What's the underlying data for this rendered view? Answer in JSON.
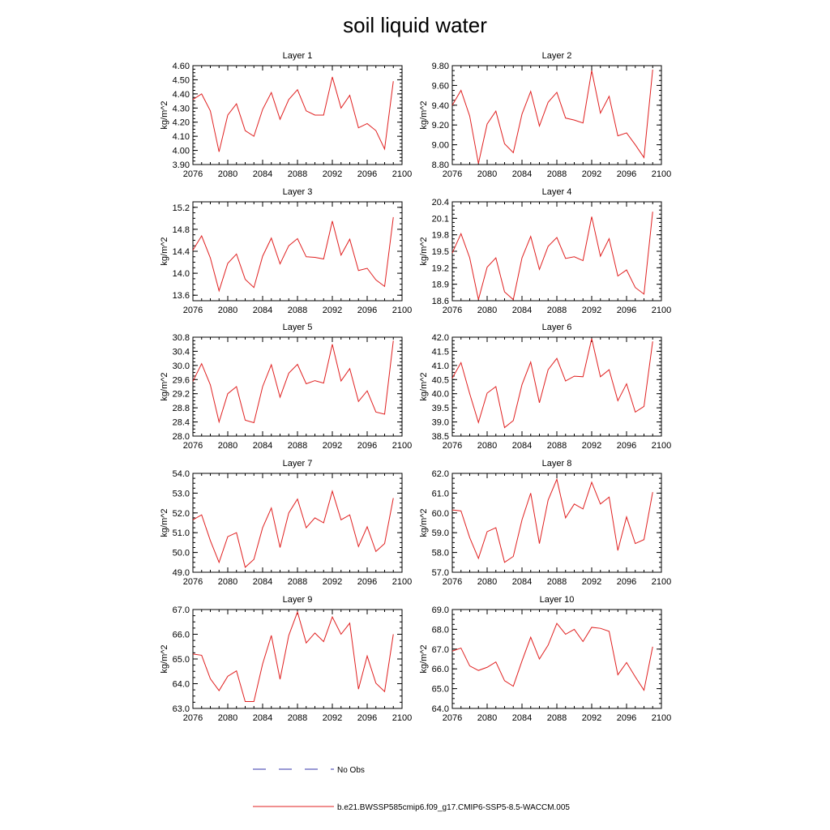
{
  "title": "soil liquid water",
  "legend": {
    "obs_label": "No Obs",
    "obs_color": "#3333aa",
    "model_label": "b.e21.BWSSP585cmip6.f09_g17.CMIP6-SSP5-8.5-WACCM.005",
    "model_color": "#e02020"
  },
  "chart_data": [
    {
      "type": "line",
      "title": "Layer 1",
      "ylabel": "kg/m^2",
      "xlim": [
        2076,
        2100
      ],
      "ylim": [
        3.9,
        4.6
      ],
      "xticks": [
        "2076",
        "2080",
        "2084",
        "2088",
        "2092",
        "2096",
        "2100"
      ],
      "yticks": [
        "3.90",
        "4.00",
        "4.10",
        "4.20",
        "4.30",
        "4.40",
        "4.50",
        "4.60"
      ],
      "x": [
        2076,
        2077,
        2078,
        2079,
        2080,
        2081,
        2082,
        2083,
        2084,
        2085,
        2086,
        2087,
        2088,
        2089,
        2090,
        2091,
        2092,
        2093,
        2094,
        2095,
        2096,
        2097,
        2098,
        2099
      ],
      "series": [
        {
          "values": [
            4.36,
            4.4,
            4.28,
            3.99,
            4.25,
            4.33,
            4.14,
            4.1,
            4.29,
            4.41,
            4.22,
            4.36,
            4.43,
            4.28,
            4.25,
            4.25,
            4.52,
            4.3,
            4.39,
            4.16,
            4.19,
            4.14,
            4.01,
            4.49
          ]
        }
      ]
    },
    {
      "type": "line",
      "title": "Layer 2",
      "ylabel": "kg/m^2",
      "xlim": [
        2076,
        2100
      ],
      "ylim": [
        8.8,
        9.8
      ],
      "xticks": [
        "2076",
        "2080",
        "2084",
        "2088",
        "2092",
        "2096",
        "2100"
      ],
      "yticks": [
        "8.80",
        "9.00",
        "9.20",
        "9.40",
        "9.60",
        "9.80"
      ],
      "x": [
        2076,
        2077,
        2078,
        2079,
        2080,
        2081,
        2082,
        2083,
        2084,
        2085,
        2086,
        2087,
        2088,
        2089,
        2090,
        2091,
        2092,
        2093,
        2094,
        2095,
        2096,
        2097,
        2098,
        2099
      ],
      "series": [
        {
          "values": [
            9.4,
            9.55,
            9.29,
            8.81,
            9.21,
            9.34,
            9.01,
            8.92,
            9.31,
            9.54,
            9.19,
            9.43,
            9.53,
            9.27,
            9.25,
            9.22,
            9.75,
            9.32,
            9.49,
            9.09,
            9.12,
            9.0,
            8.87,
            9.76
          ]
        }
      ]
    },
    {
      "type": "line",
      "title": "Layer 3",
      "ylabel": "kg/m^2",
      "xlim": [
        2076,
        2100
      ],
      "ylim": [
        13.5,
        15.3
      ],
      "xticks": [
        "2076",
        "2080",
        "2084",
        "2088",
        "2092",
        "2096",
        "2100"
      ],
      "yticks": [
        "13.6",
        "14.0",
        "14.4",
        "14.8",
        "15.2"
      ],
      "x": [
        2076,
        2077,
        2078,
        2079,
        2080,
        2081,
        2082,
        2083,
        2084,
        2085,
        2086,
        2087,
        2088,
        2089,
        2090,
        2091,
        2092,
        2093,
        2094,
        2095,
        2096,
        2097,
        2098,
        2099
      ],
      "series": [
        {
          "values": [
            14.42,
            14.68,
            14.28,
            13.68,
            14.18,
            14.35,
            13.89,
            13.74,
            14.31,
            14.64,
            14.17,
            14.5,
            14.63,
            14.3,
            14.29,
            14.26,
            14.95,
            14.33,
            14.62,
            14.05,
            14.09,
            13.88,
            13.76,
            15.02
          ]
        }
      ]
    },
    {
      "type": "line",
      "title": "Layer 4",
      "ylabel": "kg/m^2",
      "xlim": [
        2076,
        2100
      ],
      "ylim": [
        18.6,
        20.4
      ],
      "xticks": [
        "2076",
        "2080",
        "2084",
        "2088",
        "2092",
        "2096",
        "2100"
      ],
      "yticks": [
        "18.6",
        "18.9",
        "19.2",
        "19.5",
        "19.8",
        "20.1",
        "20.4"
      ],
      "x": [
        2076,
        2077,
        2078,
        2079,
        2080,
        2081,
        2082,
        2083,
        2084,
        2085,
        2086,
        2087,
        2088,
        2089,
        2090,
        2091,
        2092,
        2093,
        2094,
        2095,
        2096,
        2097,
        2098,
        2099
      ],
      "series": [
        {
          "values": [
            19.47,
            19.82,
            19.38,
            18.62,
            19.21,
            19.38,
            18.76,
            18.62,
            19.38,
            19.77,
            19.17,
            19.59,
            19.75,
            19.37,
            19.4,
            19.33,
            20.13,
            19.41,
            19.73,
            19.05,
            19.16,
            18.84,
            18.72,
            20.22
          ]
        }
      ]
    },
    {
      "type": "line",
      "title": "Layer 5",
      "ylabel": "kg/m^2",
      "xlim": [
        2076,
        2100
      ],
      "ylim": [
        28.0,
        30.8
      ],
      "xticks": [
        "2076",
        "2080",
        "2084",
        "2088",
        "2092",
        "2096",
        "2100"
      ],
      "yticks": [
        "28.0",
        "28.4",
        "28.8",
        "29.2",
        "29.6",
        "30.0",
        "30.4",
        "30.8"
      ],
      "x": [
        2076,
        2077,
        2078,
        2079,
        2080,
        2081,
        2082,
        2083,
        2084,
        2085,
        2086,
        2087,
        2088,
        2089,
        2090,
        2091,
        2092,
        2093,
        2094,
        2095,
        2096,
        2097,
        2098,
        2099
      ],
      "series": [
        {
          "values": [
            29.55,
            30.05,
            29.45,
            28.4,
            29.2,
            29.4,
            28.45,
            28.38,
            29.4,
            30.02,
            29.1,
            29.78,
            30.03,
            29.48,
            29.57,
            29.5,
            30.6,
            29.56,
            29.91,
            28.98,
            29.28,
            28.68,
            28.62,
            30.7
          ]
        }
      ]
    },
    {
      "type": "line",
      "title": "Layer 6",
      "ylabel": "kg/m^2",
      "xlim": [
        2076,
        2100
      ],
      "ylim": [
        38.5,
        42.0
      ],
      "xticks": [
        "2076",
        "2080",
        "2084",
        "2088",
        "2092",
        "2096",
        "2100"
      ],
      "yticks": [
        "38.5",
        "39.0",
        "39.5",
        "40.0",
        "40.5",
        "41.0",
        "41.5",
        "42.0"
      ],
      "x": [
        2076,
        2077,
        2078,
        2079,
        2080,
        2081,
        2082,
        2083,
        2084,
        2085,
        2086,
        2087,
        2088,
        2089,
        2090,
        2091,
        2092,
        2093,
        2094,
        2095,
        2096,
        2097,
        2098,
        2099
      ],
      "series": [
        {
          "values": [
            40.55,
            41.1,
            40.0,
            38.98,
            40.02,
            40.25,
            38.8,
            39.05,
            40.32,
            41.12,
            39.68,
            40.85,
            41.25,
            40.45,
            40.62,
            40.6,
            41.95,
            40.6,
            40.85,
            39.75,
            40.35,
            39.35,
            39.55,
            41.85
          ]
        }
      ]
    },
    {
      "type": "line",
      "title": "Layer 7",
      "ylabel": "kg/m^2",
      "xlim": [
        2076,
        2100
      ],
      "ylim": [
        49.0,
        54.0
      ],
      "xticks": [
        "2076",
        "2080",
        "2084",
        "2088",
        "2092",
        "2096",
        "2100"
      ],
      "yticks": [
        "49.0",
        "50.0",
        "51.0",
        "52.0",
        "53.0",
        "54.0"
      ],
      "x": [
        2076,
        2077,
        2078,
        2079,
        2080,
        2081,
        2082,
        2083,
        2084,
        2085,
        2086,
        2087,
        2088,
        2089,
        2090,
        2091,
        2092,
        2093,
        2094,
        2095,
        2096,
        2097,
        2098,
        2099
      ],
      "series": [
        {
          "values": [
            51.65,
            51.9,
            50.6,
            49.5,
            50.8,
            51.0,
            49.25,
            49.65,
            51.25,
            52.25,
            50.25,
            52.0,
            52.7,
            51.25,
            51.75,
            51.5,
            53.1,
            51.65,
            51.9,
            50.3,
            51.3,
            50.05,
            50.45,
            52.75
          ]
        }
      ]
    },
    {
      "type": "line",
      "title": "Layer 8",
      "ylabel": "kg/m^2",
      "xlim": [
        2076,
        2100
      ],
      "ylim": [
        57.0,
        62.0
      ],
      "xticks": [
        "2076",
        "2080",
        "2084",
        "2088",
        "2092",
        "2096",
        "2100"
      ],
      "yticks": [
        "57.0",
        "58.0",
        "59.0",
        "60.0",
        "61.0",
        "62.0"
      ],
      "x": [
        2076,
        2077,
        2078,
        2079,
        2080,
        2081,
        2082,
        2083,
        2084,
        2085,
        2086,
        2087,
        2088,
        2089,
        2090,
        2091,
        2092,
        2093,
        2094,
        2095,
        2096,
        2097,
        2098,
        2099
      ],
      "series": [
        {
          "values": [
            60.15,
            60.1,
            58.75,
            57.7,
            59.05,
            59.25,
            57.5,
            57.8,
            59.65,
            61.0,
            58.45,
            60.65,
            61.7,
            59.75,
            60.45,
            60.2,
            61.55,
            60.45,
            60.8,
            58.1,
            59.8,
            58.45,
            58.65,
            61.05
          ]
        }
      ]
    },
    {
      "type": "line",
      "title": "Layer 9",
      "ylabel": "kg/m^2",
      "xlim": [
        2076,
        2100
      ],
      "ylim": [
        63.0,
        67.0
      ],
      "xticks": [
        "2076",
        "2080",
        "2084",
        "2088",
        "2092",
        "2096",
        "2100"
      ],
      "yticks": [
        "63.0",
        "64.0",
        "65.0",
        "66.0",
        "67.0"
      ],
      "x": [
        2076,
        2077,
        2078,
        2079,
        2080,
        2081,
        2082,
        2083,
        2084,
        2085,
        2086,
        2087,
        2088,
        2089,
        2090,
        2091,
        2092,
        2093,
        2094,
        2095,
        2096,
        2097,
        2098,
        2099
      ],
      "series": [
        {
          "values": [
            65.2,
            65.15,
            64.2,
            63.72,
            64.3,
            64.52,
            63.28,
            63.28,
            64.8,
            65.95,
            64.18,
            65.95,
            66.9,
            65.65,
            66.05,
            65.7,
            66.7,
            66.0,
            66.45,
            63.78,
            65.12,
            64.02,
            63.68,
            66.0
          ]
        }
      ]
    },
    {
      "type": "line",
      "title": "Layer 10",
      "ylabel": "kg/m^2",
      "xlim": [
        2076,
        2100
      ],
      "ylim": [
        64.0,
        69.0
      ],
      "xticks": [
        "2076",
        "2080",
        "2084",
        "2088",
        "2092",
        "2096",
        "2100"
      ],
      "yticks": [
        "64.0",
        "65.0",
        "66.0",
        "67.0",
        "68.0",
        "69.0"
      ],
      "x": [
        2076,
        2077,
        2078,
        2079,
        2080,
        2081,
        2082,
        2083,
        2084,
        2085,
        2086,
        2087,
        2088,
        2089,
        2090,
        2091,
        2092,
        2093,
        2094,
        2095,
        2096,
        2097,
        2098,
        2099
      ],
      "series": [
        {
          "values": [
            66.9,
            67.05,
            66.15,
            65.92,
            66.08,
            66.35,
            65.4,
            65.12,
            66.4,
            67.6,
            66.5,
            67.2,
            68.3,
            67.75,
            68.0,
            67.38,
            68.1,
            68.05,
            67.9,
            65.7,
            66.32,
            65.6,
            64.92,
            67.12
          ]
        }
      ]
    }
  ]
}
